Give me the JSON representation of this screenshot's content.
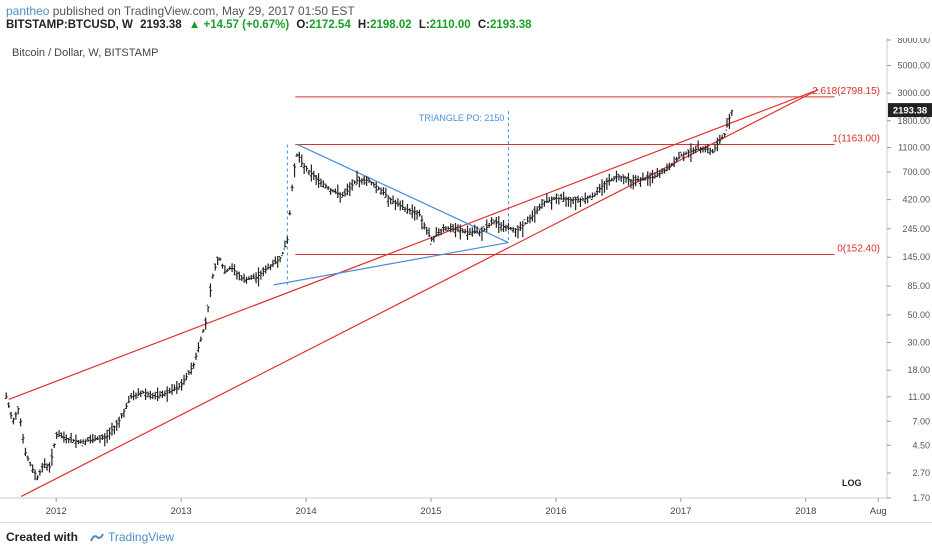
{
  "header": {
    "author": "pantheo",
    "published": "published on TradingView.com, May 29, 2017 01:50 EST",
    "symbol": "BITSTAMP:BTCUSD, W",
    "last": "2193.38",
    "change": "▲ +14.57 (+0.67%)",
    "o_label": "O:",
    "o_value": "2172.54",
    "h_label": "H:",
    "h_value": "2198.02",
    "l_label": "L:",
    "l_value": "2110.00",
    "c_label": "C:",
    "c_value": "2193.38"
  },
  "chart_data": {
    "type": "candlestick",
    "title": "Bitcoin / Dollar, W, BITSTAMP",
    "scale": "log",
    "ylim": [
      1.7,
      8000
    ],
    "y_ticks": [
      "8000.00",
      "5000.00",
      "3000.00",
      "1800.00",
      "1100.00",
      "700.00",
      "420.00",
      "245.00",
      "145.00",
      "85.00",
      "50.00",
      "30.00",
      "18.00",
      "11.00",
      "7.00",
      "4.50",
      "2.70",
      "1.70"
    ],
    "x_ticks": [
      "2012",
      "2013",
      "2014",
      "2015",
      "2016",
      "2017",
      "2018",
      "Aug"
    ],
    "x_tick_values": [
      2012.0,
      2013.0,
      2014.0,
      2015.0,
      2016.0,
      2017.0,
      2018.0,
      2018.58
    ],
    "xlim": [
      2011.55,
      2018.65
    ],
    "last_price_label": "2193.38",
    "last_price": 2193.38,
    "log_label": "LOG",
    "fib_levels": [
      {
        "label": "2.618(2798.15)",
        "value": 2798.15
      },
      {
        "label": "1(1163.00)",
        "value": 1163.0
      },
      {
        "label": "0(152.40)",
        "value": 152.4
      }
    ],
    "annotation": "TRIANGLE PO: 2150",
    "price_path": [
      [
        2011.6,
        11
      ],
      [
        2011.65,
        7
      ],
      [
        2011.7,
        9
      ],
      [
        2011.75,
        4
      ],
      [
        2011.8,
        3
      ],
      [
        2011.85,
        2.5
      ],
      [
        2011.9,
        3.2
      ],
      [
        2011.95,
        3
      ],
      [
        2012.0,
        5.5
      ],
      [
        2012.1,
        5
      ],
      [
        2012.2,
        4.8
      ],
      [
        2012.3,
        5
      ],
      [
        2012.4,
        5.2
      ],
      [
        2012.5,
        7
      ],
      [
        2012.6,
        11
      ],
      [
        2012.7,
        12
      ],
      [
        2012.8,
        11
      ],
      [
        2012.9,
        12
      ],
      [
        2013.0,
        13.5
      ],
      [
        2013.1,
        20
      ],
      [
        2013.2,
        45
      ],
      [
        2013.25,
        100
      ],
      [
        2013.3,
        150
      ],
      [
        2013.35,
        110
      ],
      [
        2013.4,
        120
      ],
      [
        2013.5,
        95
      ],
      [
        2013.6,
        100
      ],
      [
        2013.7,
        120
      ],
      [
        2013.8,
        145
      ],
      [
        2013.85,
        200
      ],
      [
        2013.9,
        700
      ],
      [
        2013.93,
        1000
      ],
      [
        2013.97,
        800
      ],
      [
        2014.0,
        750
      ],
      [
        2014.1,
        600
      ],
      [
        2014.2,
        500
      ],
      [
        2014.3,
        450
      ],
      [
        2014.4,
        600
      ],
      [
        2014.5,
        600
      ],
      [
        2014.6,
        500
      ],
      [
        2014.7,
        400
      ],
      [
        2014.8,
        350
      ],
      [
        2014.9,
        330
      ],
      [
        2015.0,
        200
      ],
      [
        2015.1,
        250
      ],
      [
        2015.2,
        240
      ],
      [
        2015.3,
        230
      ],
      [
        2015.4,
        230
      ],
      [
        2015.5,
        280
      ],
      [
        2015.6,
        250
      ],
      [
        2015.7,
        240
      ],
      [
        2015.8,
        300
      ],
      [
        2015.9,
        400
      ],
      [
        2016.0,
        430
      ],
      [
        2016.1,
        420
      ],
      [
        2016.2,
        420
      ],
      [
        2016.3,
        450
      ],
      [
        2016.4,
        580
      ],
      [
        2016.5,
        650
      ],
      [
        2016.6,
        600
      ],
      [
        2016.7,
        610
      ],
      [
        2016.8,
        650
      ],
      [
        2016.9,
        750
      ],
      [
        2017.0,
        950
      ],
      [
        2017.1,
        1050
      ],
      [
        2017.2,
        1100
      ],
      [
        2017.25,
        1000
      ],
      [
        2017.3,
        1200
      ],
      [
        2017.35,
        1400
      ],
      [
        2017.38,
        1800
      ],
      [
        2017.41,
        2193.38
      ]
    ],
    "trend_lines": [
      {
        "color": "#e0302e",
        "points": [
          [
            2011.62,
            10.5
          ],
          [
            2018.1,
            3200
          ]
        ]
      },
      {
        "color": "#e0302e",
        "points": [
          [
            2011.72,
            1.75
          ],
          [
            2018.1,
            3200
          ]
        ]
      },
      {
        "color": "#4a8fd8",
        "points": [
          [
            2013.93,
            1163
          ],
          [
            2015.62,
            190
          ]
        ]
      },
      {
        "color": "#4a8fd8",
        "points": [
          [
            2013.74,
            87
          ],
          [
            2015.62,
            190
          ]
        ]
      }
    ],
    "fib_x_range": [
      2013.93,
      2018.23
    ],
    "vertical_dashed": [
      {
        "x": 2013.85,
        "y_top": 1163,
        "y_bottom": 87
      },
      {
        "x": 2015.62,
        "y_top": 2150,
        "y_bottom": 190
      }
    ]
  },
  "footer": {
    "created": "Created with",
    "brand": "TradingView"
  }
}
